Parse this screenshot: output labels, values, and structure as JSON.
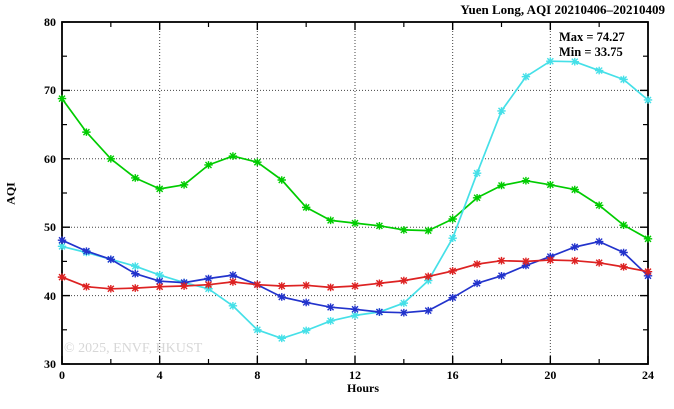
{
  "title": "Yuen Long, AQI 20210406–20210409",
  "annotations": {
    "max_label": "Max = 74.27",
    "min_label": "Min = 33.75"
  },
  "watermark": "© 2025, ENVF, HKUST",
  "chart_data": {
    "type": "line",
    "title": "Yuen Long, AQI 20210406–20210409",
    "xlabel": "Hours",
    "ylabel": "AQI",
    "xlim": [
      0,
      24
    ],
    "ylim": [
      30,
      80
    ],
    "x_major_ticks": [
      0,
      4,
      8,
      12,
      16,
      20,
      24
    ],
    "x_minor_ticks": [
      2,
      6,
      10,
      14,
      18,
      22
    ],
    "y_major_ticks": [
      30,
      40,
      50,
      60,
      70,
      80
    ],
    "y_minor_ticks": [
      35,
      45,
      55,
      65,
      75
    ],
    "grid_x_lines": [
      4,
      8,
      12,
      16,
      20
    ],
    "grid_y_lines": [
      40,
      50,
      60,
      70
    ],
    "grid_style": "dotted",
    "legend_position": "none",
    "max_value": 74.27,
    "min_value": 33.75,
    "x": [
      0,
      1,
      2,
      3,
      4,
      5,
      6,
      7,
      8,
      9,
      10,
      11,
      12,
      13,
      14,
      15,
      16,
      17,
      18,
      19,
      20,
      21,
      22,
      23,
      24
    ],
    "series": [
      {
        "name": "series-green",
        "color": "#00CC00",
        "marker": "asterisk",
        "values": [
          68.8,
          63.9,
          60.0,
          57.2,
          55.6,
          56.2,
          59.1,
          60.4,
          59.5,
          56.9,
          52.9,
          51.0,
          50.6,
          50.2,
          49.6,
          49.5,
          51.2,
          54.3,
          56.1,
          56.8,
          56.2,
          55.5,
          53.2,
          50.3,
          48.3
        ]
      },
      {
        "name": "series-cyan",
        "color": "#45E0E8",
        "marker": "asterisk",
        "values": [
          47.2,
          46.3,
          45.3,
          44.3,
          43.0,
          41.9,
          41.0,
          38.5,
          35.0,
          33.75,
          34.9,
          36.3,
          37.1,
          37.6,
          38.9,
          42.2,
          48.4,
          57.9,
          67.0,
          72.0,
          74.27,
          74.2,
          72.9,
          71.6,
          68.6
        ]
      },
      {
        "name": "series-blue",
        "color": "#2233CC",
        "marker": "asterisk",
        "values": [
          48.1,
          46.5,
          45.3,
          43.2,
          42.1,
          41.9,
          42.5,
          43.0,
          41.6,
          39.8,
          39.0,
          38.3,
          38.0,
          37.6,
          37.5,
          37.8,
          39.7,
          41.8,
          42.9,
          44.4,
          45.7,
          47.1,
          47.9,
          46.3,
          42.9
        ]
      },
      {
        "name": "series-red",
        "color": "#DD2222",
        "marker": "asterisk",
        "values": [
          42.7,
          41.3,
          41.0,
          41.1,
          41.3,
          41.4,
          41.6,
          42.0,
          41.6,
          41.4,
          41.5,
          41.2,
          41.4,
          41.8,
          42.2,
          42.8,
          43.6,
          44.6,
          45.1,
          45.0,
          45.2,
          45.1,
          44.8,
          44.2,
          43.5
        ]
      }
    ]
  }
}
